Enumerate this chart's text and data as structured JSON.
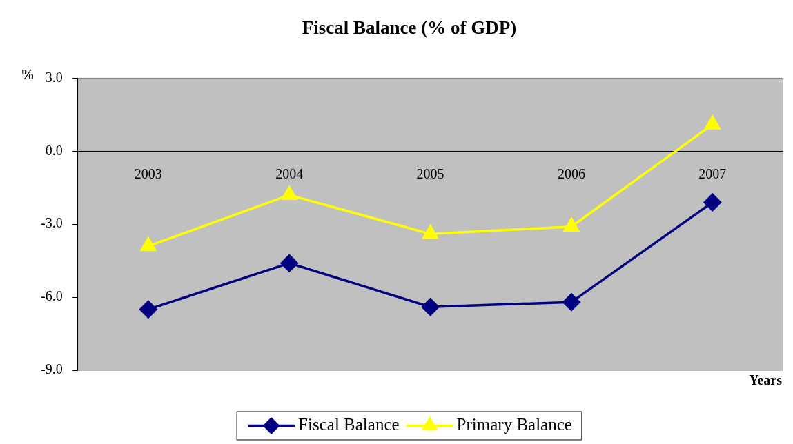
{
  "chart_data": {
    "type": "line",
    "title": "Fiscal Balance (% of GDP)",
    "xlabel": "Years",
    "ylabel": "%",
    "categories": [
      "2003",
      "2004",
      "2005",
      "2006",
      "2007"
    ],
    "series": [
      {
        "name": "Fiscal Balance",
        "color": "#000080",
        "marker": "diamond",
        "values": [
          -6.5,
          -4.6,
          -6.4,
          -6.2,
          -2.1
        ]
      },
      {
        "name": "Primary Balance",
        "color": "#ffff00",
        "marker": "triangle",
        "values": [
          -3.9,
          -1.8,
          -3.4,
          -3.1,
          1.1
        ]
      }
    ],
    "ylim": [
      -9,
      3
    ],
    "yticks": [
      {
        "value": 3,
        "label": "3.0"
      },
      {
        "value": 0,
        "label": "0.0"
      },
      {
        "value": -3,
        "label": "-3.0"
      },
      {
        "value": -6,
        "label": "-6.0"
      },
      {
        "value": -9,
        "label": "-9.0"
      }
    ],
    "grid": false,
    "legend": "bottom"
  }
}
